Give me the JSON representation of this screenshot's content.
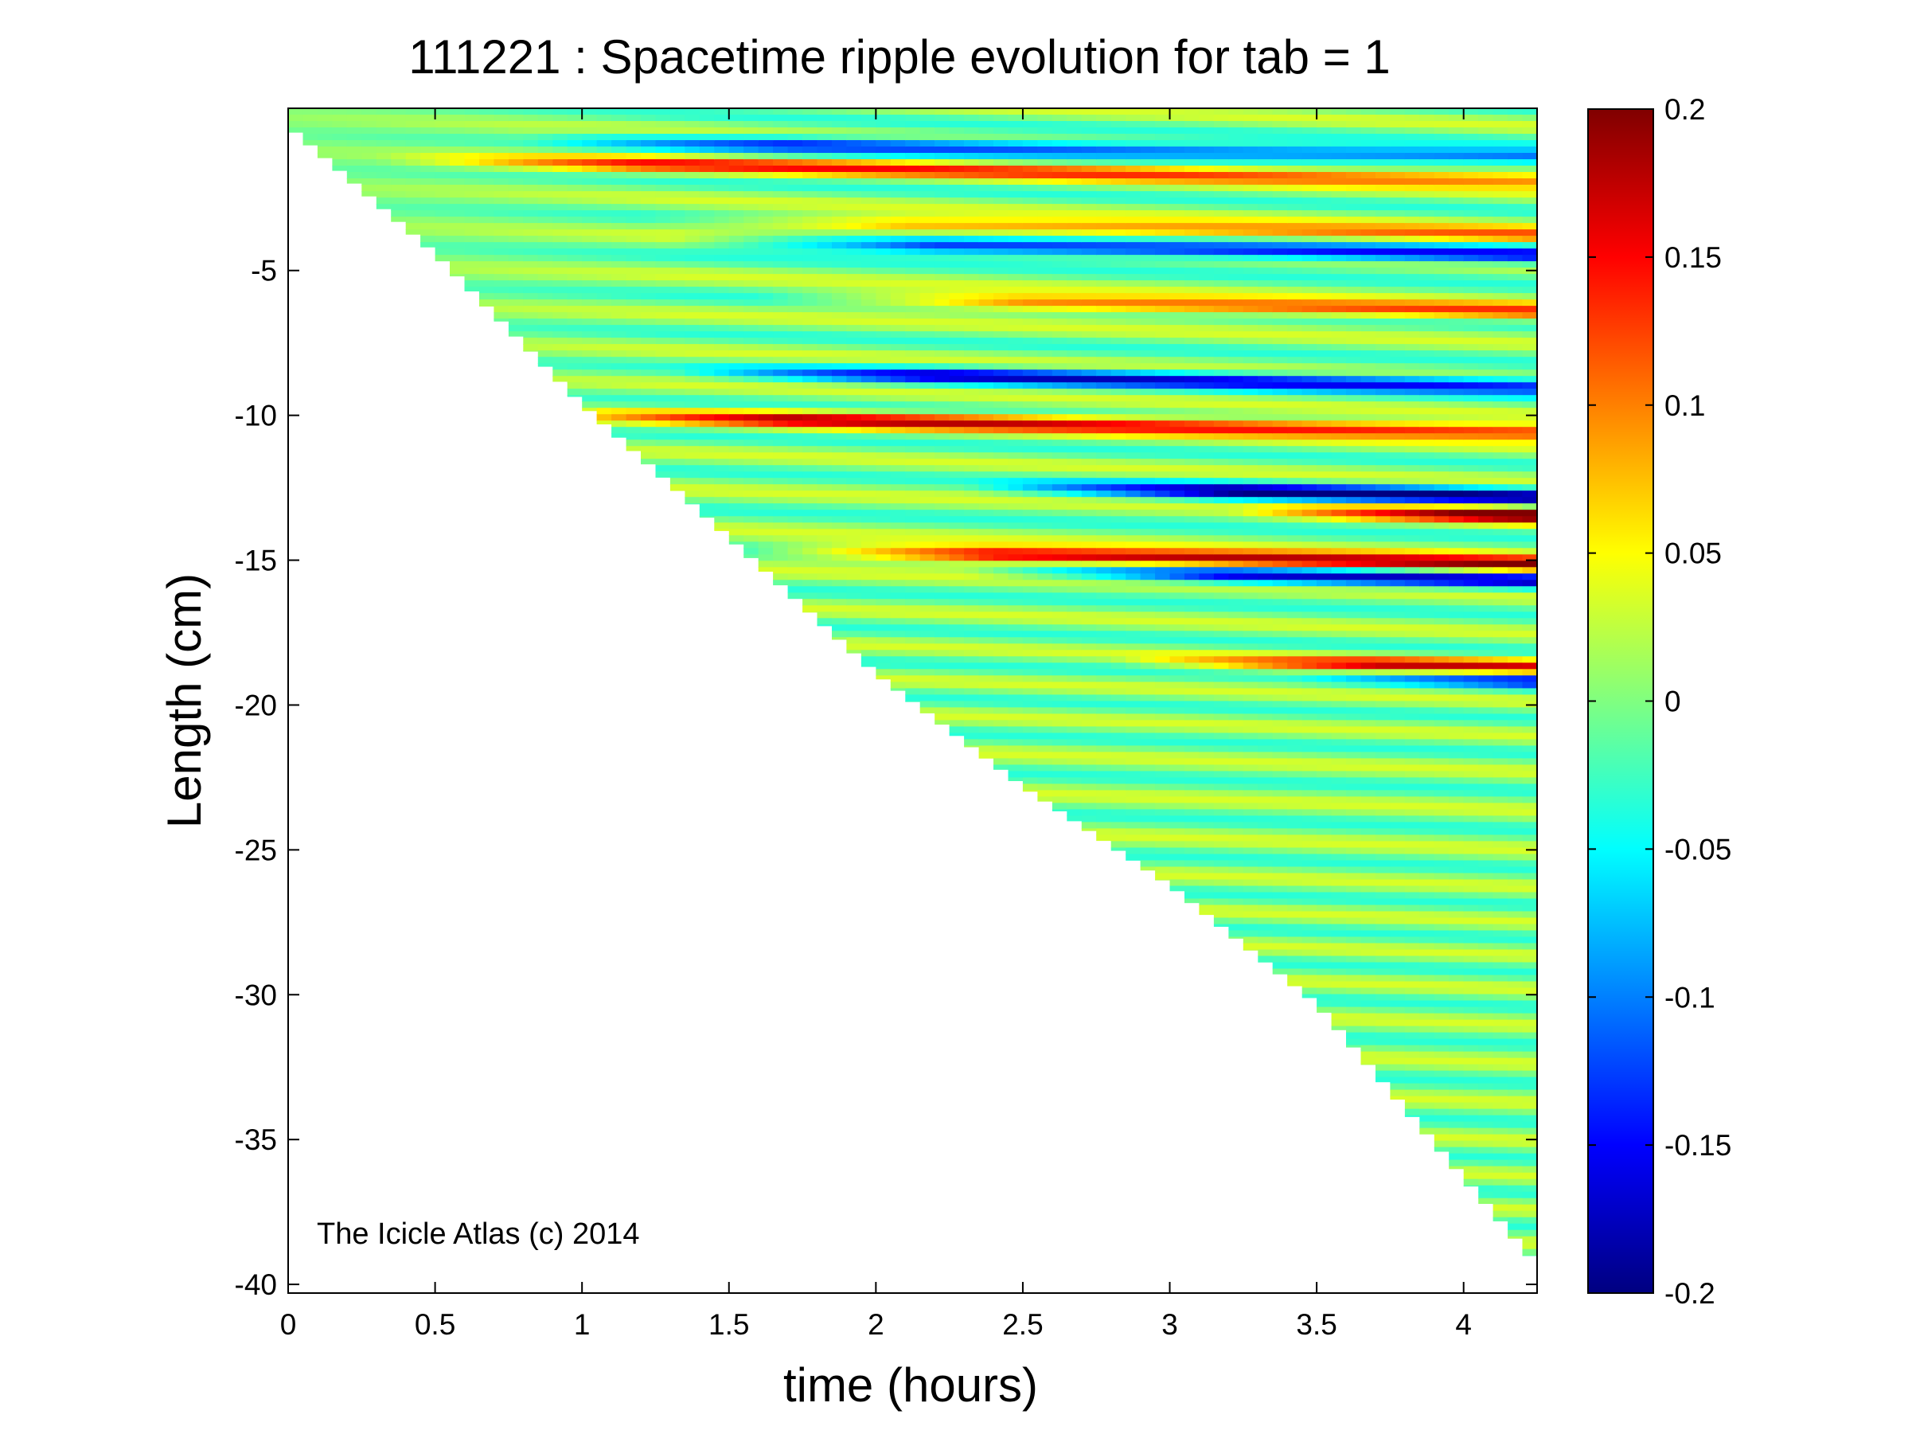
{
  "chart_data": {
    "type": "heatmap",
    "title": "111221 : Spacetime ripple evolution for tab = 1",
    "xlabel": "time (hours)",
    "ylabel": "Length (cm)",
    "xlim": [
      0,
      4.25
    ],
    "ylim": [
      -40.3,
      0.6
    ],
    "x_ticks": [
      0,
      0.5,
      1,
      1.5,
      2,
      2.5,
      3,
      3.5,
      4
    ],
    "x_tick_labels": [
      "0",
      "0.5",
      "1",
      "1.5",
      "2",
      "2.5",
      "3",
      "3.5",
      "4"
    ],
    "y_ticks": [
      -5,
      -10,
      -15,
      -20,
      -25,
      -30,
      -35,
      -40
    ],
    "y_tick_labels": [
      "-5",
      "-10",
      "-15",
      "-20",
      "-25",
      "-30",
      "-35",
      "-40"
    ],
    "colorbar": {
      "colormap": "jet",
      "clim": [
        -0.2,
        0.2
      ],
      "ticks": [
        0.2,
        0.15,
        0.1,
        0.05,
        0,
        -0.05,
        -0.1,
        -0.15,
        -0.2
      ],
      "tick_labels": [
        "0.2",
        "0.15",
        "0.1",
        "0.05",
        "0",
        "-0.05",
        "-0.1",
        "-0.15",
        "-0.2"
      ]
    },
    "annotation": "The Icicle Atlas (c) 2014",
    "data_boundary": {
      "description": "icicle tip length vs time (lower edge of measured region)",
      "time_hours": [
        0,
        0.5,
        1,
        1.5,
        2,
        2.5,
        3,
        3.5,
        4,
        4.25
      ],
      "length_cm": [
        0,
        -4.4,
        -9.6,
        -14.2,
        -18.9,
        -22.8,
        -26.2,
        -30.3,
        -36.3,
        -39.3
      ]
    },
    "features": [
      {
        "length_cm": -1.2,
        "sign": "positive",
        "amplitude": 0.12,
        "from_hours": 0.5
      },
      {
        "length_cm": -0.5,
        "sign": "negative",
        "amplitude": -0.13,
        "from_hours": 1.0
      },
      {
        "length_cm": -4.0,
        "sign": "negative",
        "amplitude": -0.16,
        "from_hours": 1.5
      },
      {
        "length_cm": -3.3,
        "sign": "positive",
        "amplitude": 0.11,
        "from_hours": 1.4
      },
      {
        "length_cm": -6.0,
        "sign": "positive",
        "amplitude": 0.12,
        "from_hours": 1.8
      },
      {
        "length_cm": -8.5,
        "sign": "negative",
        "amplitude": -0.15,
        "from_hours": 1.5
      },
      {
        "length_cm": -10.0,
        "sign": "positive",
        "amplitude": 0.16,
        "from_hours": 1.0
      },
      {
        "length_cm": -12.5,
        "sign": "negative",
        "amplitude": -0.18,
        "from_hours": 2.5
      },
      {
        "length_cm": -13.3,
        "sign": "positive",
        "amplitude": 0.2,
        "from_hours": 3.4
      },
      {
        "length_cm": -14.7,
        "sign": "positive",
        "amplitude": 0.19,
        "from_hours": 1.7
      },
      {
        "length_cm": -15.4,
        "sign": "negative",
        "amplitude": -0.16,
        "from_hours": 2.5
      },
      {
        "length_cm": -18.5,
        "sign": "positive",
        "amplitude": 0.15,
        "from_hours": 3.0
      },
      {
        "length_cm": -19.0,
        "sign": "negative",
        "amplitude": -0.16,
        "from_hours": 3.6
      }
    ]
  }
}
